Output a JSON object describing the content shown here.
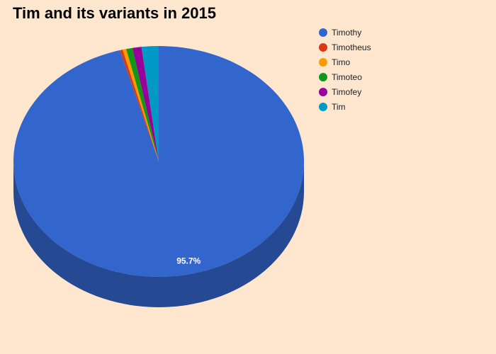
{
  "chart_data": {
    "type": "pie",
    "title": "Tim and its variants in 2015",
    "legend_position": "right",
    "three_d": true,
    "categories": [
      "Timothy",
      "Timotheus",
      "Timo",
      "Timoteo",
      "Timofey",
      "Tim"
    ],
    "values": [
      95.7,
      0.3,
      0.4,
      0.7,
      1.0,
      1.9
    ],
    "colors": [
      "#3366cc",
      "#dc3912",
      "#ff9900",
      "#109618",
      "#990099",
      "#0099c6"
    ],
    "data_labels": [
      "95.7%",
      "",
      "",
      "",
      "",
      ""
    ]
  }
}
